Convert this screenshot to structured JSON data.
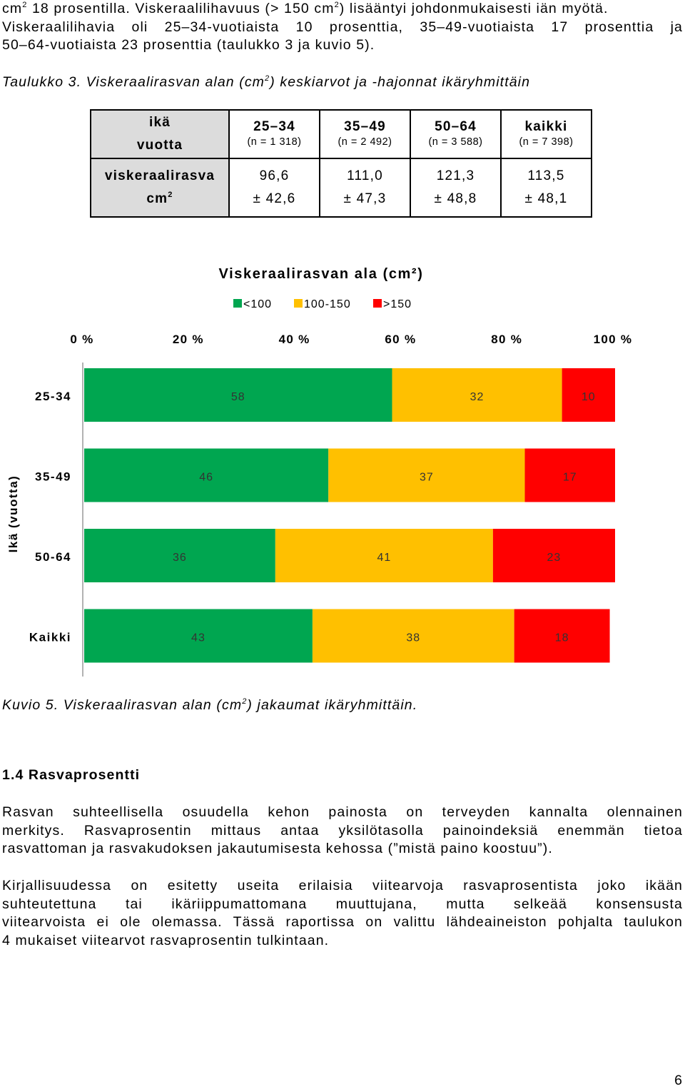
{
  "intro": {
    "line1_a": "cm",
    "line1_sup1": "2",
    "line1_b": " 18 prosentilla. Viskeraalilihavuus (> 150 cm",
    "line1_sup2": "2",
    "line1_c": ") lisääntyi johdonmukaisesti iän myötä.",
    "line2": "Viskeraalilihavia oli 25–34-vuotiaista 10 prosenttia, 35–49-vuotiaista 17 prosenttia ja",
    "line3": "50–64-vuotiaista 23 prosenttia (taulukko 3 ja kuvio 5)."
  },
  "table_caption": {
    "prefix": "Taulukko 3. Viskeraalirasvan alan (cm",
    "sup": "2",
    "suffix": ") keskiarvot ja -hajonnat ikäryhmittäin"
  },
  "table": {
    "header_label_1": "ikä",
    "header_label_2": "vuotta",
    "row_label_1": "viskeraalirasva",
    "row_label_2": "cm",
    "row_label_sup": "2",
    "columns": [
      {
        "label": "25–34",
        "n": "(n = 1 318)",
        "mean": "96,6",
        "sd": "± 42,6"
      },
      {
        "label": "35–49",
        "n": "(n = 2 492)",
        "mean": "111,0",
        "sd": "± 47,3"
      },
      {
        "label": "50–64",
        "n": "(n = 3 588)",
        "mean": "121,3",
        "sd": "± 48,8"
      },
      {
        "label": "kaikki",
        "n": "(n = 7 398)",
        "mean": "113,5",
        "sd": "± 48,1"
      }
    ]
  },
  "chart_data": {
    "type": "bar",
    "orientation": "horizontal-stacked-100",
    "title": "Viskeraalirasvan ala (cm²)",
    "ylabel": "Ikä (vuotta)",
    "categories": [
      "25-34",
      "35-49",
      "50-64",
      "Kaikki"
    ],
    "series": [
      {
        "name": "<100",
        "color": "#00a650",
        "values": [
          58,
          46,
          36,
          43
        ]
      },
      {
        "name": "100-150",
        "color": "#ffc000",
        "values": [
          32,
          37,
          41,
          38
        ]
      },
      {
        "name": ">150",
        "color": "#ff0000",
        "values": [
          10,
          17,
          23,
          18
        ]
      }
    ],
    "x_ticks": [
      "0 %",
      "20 %",
      "40 %",
      "60 %",
      "80 %",
      "100 %"
    ],
    "xlim": [
      0,
      100
    ],
    "legend_position": "top",
    "grid": false
  },
  "figure_caption": {
    "prefix": "Kuvio 5. Viskeraalirasvan alan (cm",
    "sup": "2",
    "suffix": ") jakaumat ikäryhmittäin."
  },
  "section": {
    "heading": "1.4 Rasvaprosentti",
    "p1": [
      "Rasvan suhteellisella osuudella kehon painosta on terveyden kannalta olennainen",
      "merkitys. Rasvaprosentin mittaus antaa yksilötasolla painoindeksiä enemmän tietoa",
      "rasvattoman ja rasvakudoksen jakautumisesta kehossa (”mistä paino koostuu”)."
    ],
    "p2": [
      "Kirjallisuudessa on esitetty useita erilaisia viitearvoja rasvaprosentista joko ikään",
      "suhteutettuna tai ikäriippumattomana muuttujana, mutta selkeää konsensusta",
      "viitearvoista ei ole olemassa. Tässä raportissa on valittu lähdeaineiston pohjalta taulukon",
      "4 mukaiset viitearvot rasvaprosentin tulkintaan."
    ]
  },
  "page_number": "6"
}
